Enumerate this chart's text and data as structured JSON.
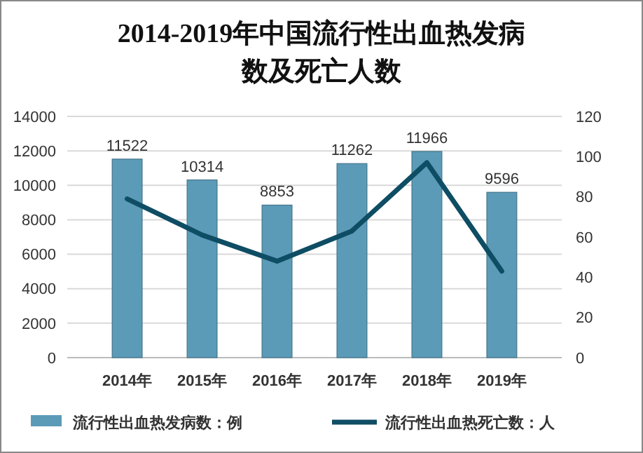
{
  "chart_data": {
    "type": "bar",
    "title": "2014-2019年中国流行性出血热发病数及死亡人数",
    "categories": [
      "2014年",
      "2015年",
      "2016年",
      "2017年",
      "2018年",
      "2019年"
    ],
    "series": [
      {
        "name": "流行性出血热发病数：例",
        "color": "#5b9bb8",
        "values": [
          11522,
          10314,
          8853,
          11262,
          11966,
          9596
        ],
        "value_labels": [
          "11522",
          "10314",
          "8853",
          "11262",
          "11966",
          "9596"
        ]
      },
      {
        "name": "流行性出血热死亡数：人",
        "type": "line",
        "axis": "y2",
        "color": "#0e4d64",
        "values": [
          79,
          61,
          48,
          63,
          97,
          43
        ]
      }
    ],
    "ylim": [
      0,
      14000
    ],
    "yticks": [
      0,
      2000,
      4000,
      6000,
      8000,
      10000,
      12000,
      14000
    ],
    "y2lim": [
      0,
      120
    ],
    "y2ticks": [
      0,
      20,
      40,
      60,
      80,
      100,
      120
    ],
    "grid": "y",
    "legend": "bottom",
    "marker": "none",
    "line_style": "solid"
  }
}
